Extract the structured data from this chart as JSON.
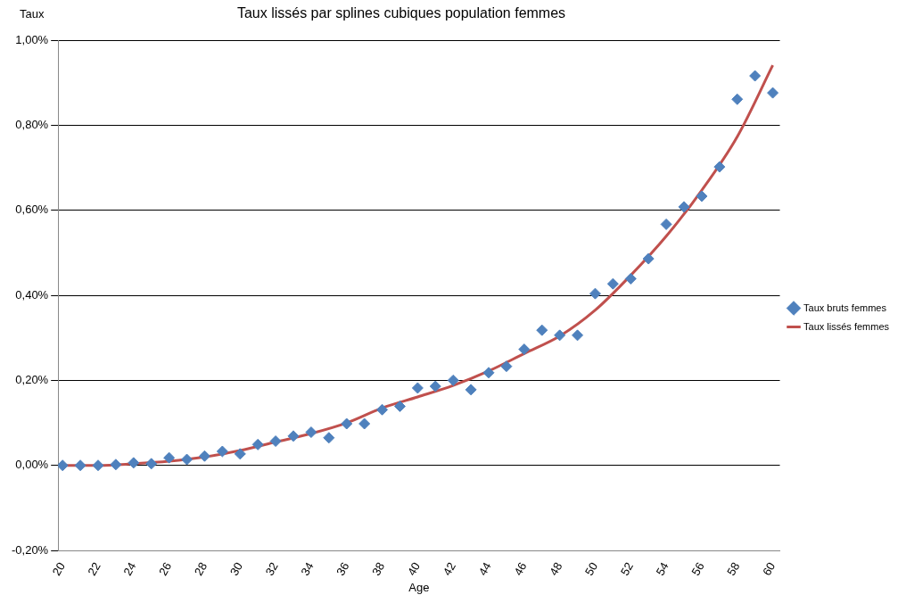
{
  "chart_data": {
    "type": "scatter",
    "title": "Taux lissés par splines cubiques population femmes",
    "xlabel": "Age",
    "ylabel": "Taux",
    "xlim": [
      19.75,
      60.4
    ],
    "xticks": [
      20,
      22,
      24,
      26,
      28,
      30,
      32,
      34,
      36,
      38,
      40,
      42,
      44,
      46,
      48,
      50,
      52,
      54,
      56,
      58,
      60
    ],
    "ylim": [
      -0.2,
      1.0
    ],
    "yticks": [
      {
        "value": -0.2,
        "label": "-0,20%"
      },
      {
        "value": 0,
        "label": "0,00%"
      },
      {
        "value": 0.2,
        "label": "0,20%"
      },
      {
        "value": 0.4,
        "label": "0,40%"
      },
      {
        "value": 0.6,
        "label": "0,60%"
      },
      {
        "value": 0.8,
        "label": "0,80%"
      },
      {
        "value": 1.0,
        "label": "1,00%"
      }
    ],
    "grid": "y",
    "legend": "right",
    "series": [
      {
        "name": "Taux bruts femmes",
        "type": "scatter",
        "marker": "diamond",
        "color": "#4f81bd",
        "x": [
          20,
          21,
          22,
          23,
          24,
          25,
          26,
          27,
          28,
          29,
          30,
          31,
          32,
          33,
          34,
          35,
          36,
          37,
          38,
          39,
          40,
          41,
          42,
          43,
          44,
          45,
          46,
          47,
          48,
          49,
          50,
          51,
          52,
          53,
          54,
          55,
          56,
          57,
          58,
          59,
          60
        ],
        "values": [
          0,
          0,
          0,
          0.002,
          0.006,
          0.004,
          0.018,
          0.014,
          0.022,
          0.033,
          0.027,
          0.049,
          0.057,
          0.069,
          0.078,
          0.065,
          0.098,
          0.098,
          0.131,
          0.139,
          0.182,
          0.186,
          0.2,
          0.178,
          0.218,
          0.233,
          0.273,
          0.318,
          0.306,
          0.306,
          0.404,
          0.427,
          0.439,
          0.486,
          0.567,
          0.608,
          0.633,
          0.702,
          0.861,
          0.916,
          0.876
        ]
      },
      {
        "name": "Taux lissés femmes",
        "type": "line",
        "marker": "none",
        "color": "#c0504d",
        "x": [
          20,
          22,
          24,
          26,
          28,
          30,
          32,
          34,
          36,
          38,
          40,
          42,
          44,
          46,
          48,
          50,
          52,
          54,
          56,
          58,
          60
        ],
        "values": [
          0,
          0,
          0.004,
          0.01,
          0.02,
          0.035,
          0.055,
          0.075,
          0.1,
          0.135,
          0.161,
          0.188,
          0.222,
          0.263,
          0.304,
          0.365,
          0.447,
          0.539,
          0.647,
          0.773,
          0.941
        ]
      }
    ]
  }
}
